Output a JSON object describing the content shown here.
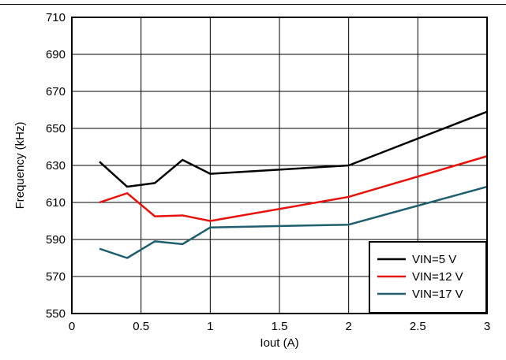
{
  "chart_data": {
    "type": "line",
    "xlabel": "Iout (A)",
    "ylabel": "Frequency (kHz)",
    "xlim": [
      0,
      3
    ],
    "ylim": [
      550,
      710
    ],
    "xticks": [
      0,
      0.5,
      1,
      1.5,
      2,
      2.5,
      3
    ],
    "yticks": [
      550,
      570,
      590,
      610,
      630,
      650,
      670,
      690,
      710
    ],
    "xtick_labels": [
      "0",
      "0.5",
      "1",
      "1.5",
      "2",
      "2.5",
      "3"
    ],
    "ytick_labels": [
      "550",
      "570",
      "590",
      "610",
      "630",
      "650",
      "670",
      "690",
      "710"
    ],
    "grid": true,
    "legend_position": "bottom-right",
    "series": [
      {
        "name": "VIN=5 V",
        "color": "#000000",
        "x": [
          0.2,
          0.4,
          0.6,
          0.8,
          1,
          2,
          3
        ],
        "y": [
          632,
          618.5,
          620.5,
          633,
          625.5,
          630,
          659
        ]
      },
      {
        "name": "VIN=12 V",
        "color": "#e8120c",
        "x": [
          0.2,
          0.4,
          0.6,
          0.8,
          1,
          2,
          3
        ],
        "y": [
          610,
          615,
          602.5,
          603,
          600,
          613,
          635
        ]
      },
      {
        "name": "VIN=17 V",
        "color": "#1e5e6e",
        "x": [
          0.2,
          0.4,
          0.6,
          0.8,
          1,
          2,
          3
        ],
        "y": [
          585,
          580,
          589,
          587.5,
          596.5,
          598,
          618.5
        ]
      }
    ]
  }
}
